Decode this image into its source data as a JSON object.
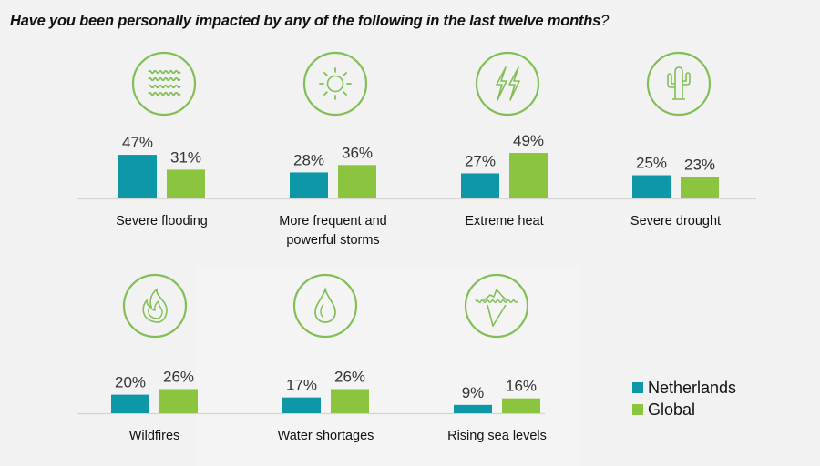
{
  "title": "Have you been personally impacted by any of the following in the last twelve months",
  "title_punct": "?",
  "colors": {
    "netherlands": "#0e97a7",
    "global": "#8bc43f",
    "icon": "#82bf56",
    "axis": "#d4d4d4",
    "label": "#333333"
  },
  "legend": [
    {
      "name": "Netherlands",
      "color": "#0e97a7"
    },
    {
      "name": "Global",
      "color": "#8bc43f"
    }
  ],
  "chart_data": {
    "type": "bar",
    "title": "Have you been personally impacted by any of the following in the last twelve months?",
    "xlabel": "",
    "ylabel": "",
    "ylim": [
      0,
      100
    ],
    "grid": false,
    "legend_position": "bottom-right",
    "categories": [
      "Severe flooding",
      "More frequent and powerful storms",
      "Extreme heat",
      "Severe drought",
      "Wildfires",
      "Water shortages",
      "Rising sea levels"
    ],
    "category_lines": [
      [
        "Severe flooding"
      ],
      [
        "More frequent and",
        "powerful storms"
      ],
      [
        "Extreme heat"
      ],
      [
        "Severe drought"
      ],
      [
        "Wildfires"
      ],
      [
        "Water shortages"
      ],
      [
        "Rising sea levels"
      ]
    ],
    "icons": [
      "waves-icon",
      "sun-icon",
      "lightning-icon",
      "cactus-icon",
      "flame-icon",
      "water-drop-icon",
      "iceberg-icon"
    ],
    "series": [
      {
        "name": "Netherlands",
        "values": [
          47,
          28,
          27,
          25,
          20,
          17,
          9
        ],
        "labels": [
          "47%",
          "28%",
          "27%",
          "25%",
          "20%",
          "17%",
          "9%"
        ]
      },
      {
        "name": "Global",
        "values": [
          31,
          36,
          49,
          23,
          26,
          26,
          16
        ],
        "labels": [
          "31%",
          "36%",
          "49%",
          "23%",
          "26%",
          "26%",
          "16%"
        ]
      }
    ]
  }
}
